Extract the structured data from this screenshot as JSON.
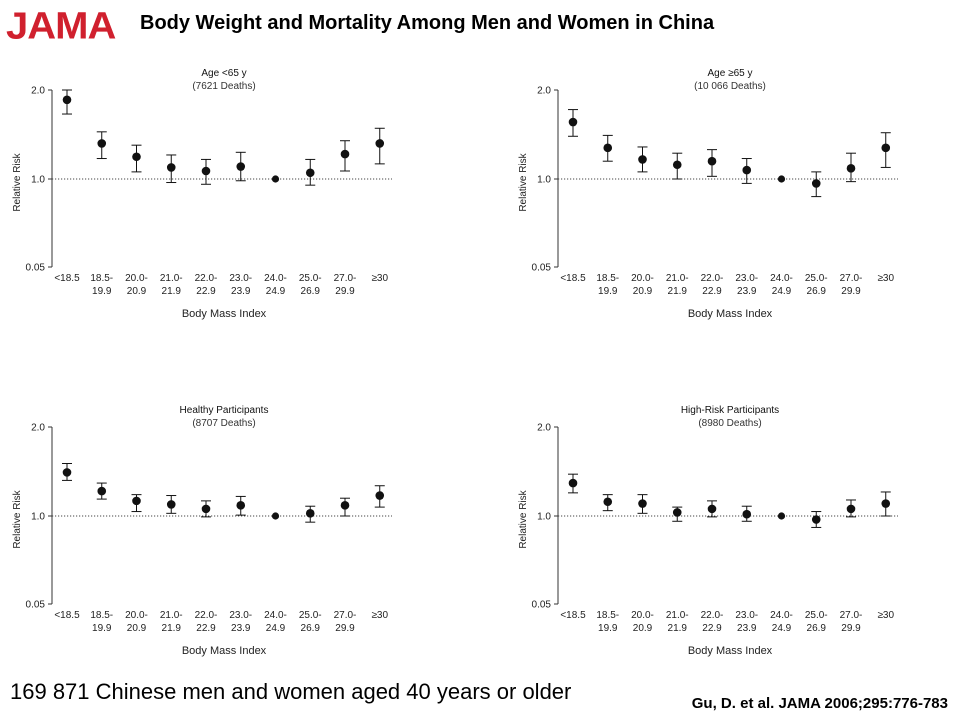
{
  "header": {
    "logo_text": "JAMA",
    "logo_color": "#d0202e",
    "title": "Body Weight and Mortality Among Men and Women in China"
  },
  "footer": {
    "note": "169 871 Chinese men and women aged 40 years or older",
    "citation": "Gu, D. et al. JAMA 2006;295:776-783"
  },
  "chart_data": [
    {
      "type": "scatter",
      "title": "Age <65 y",
      "subtitle": "(7621 Deaths)",
      "xlabel": "Body Mass Index",
      "ylabel": "Relative Risk",
      "categories": [
        [
          "<18.5"
        ],
        [
          "18.5-",
          "19.9"
        ],
        [
          "20.0-",
          "20.9"
        ],
        [
          "21.0-",
          "21.9"
        ],
        [
          "22.0-",
          "22.9"
        ],
        [
          "23.0-",
          "23.9"
        ],
        [
          "24.0-",
          "24.9"
        ],
        [
          "25.0-",
          "26.9"
        ],
        [
          "27.0-",
          "29.9"
        ],
        [
          "≥30"
        ]
      ],
      "yticks": [
        "2.0",
        "1.0",
        "0.05"
      ],
      "y_tick_values": [
        2.0,
        1.0,
        0.05
      ],
      "reference_line": 1.0,
      "values": [
        1.89,
        1.4,
        1.25,
        1.13,
        1.09,
        1.14,
        1.0,
        1.07,
        1.28,
        1.4
      ],
      "ci_low": [
        1.73,
        1.23,
        1.08,
        0.96,
        0.94,
        0.98,
        1.0,
        0.93,
        1.09,
        1.17
      ],
      "ci_high": [
        2.0,
        1.53,
        1.38,
        1.27,
        1.22,
        1.3,
        1.0,
        1.22,
        1.43,
        1.57
      ]
    },
    {
      "type": "scatter",
      "title": "Age ≥65 y",
      "subtitle": "(10 066 Deaths)",
      "xlabel": "Body Mass Index",
      "ylabel": "Relative Risk",
      "categories": [
        [
          "<18.5"
        ],
        [
          "18.5-",
          "19.9"
        ],
        [
          "20.0-",
          "20.9"
        ],
        [
          "21.0-",
          "21.9"
        ],
        [
          "22.0-",
          "22.9"
        ],
        [
          "23.0-",
          "23.9"
        ],
        [
          "24.0-",
          "24.9"
        ],
        [
          "25.0-",
          "26.9"
        ],
        [
          "27.0-",
          "29.9"
        ],
        [
          "≥30"
        ]
      ],
      "yticks": [
        "2.0",
        "1.0",
        "0.05"
      ],
      "y_tick_values": [
        2.0,
        1.0,
        0.05
      ],
      "reference_line": 1.0,
      "values": [
        1.64,
        1.35,
        1.22,
        1.16,
        1.2,
        1.1,
        1.0,
        0.95,
        1.12,
        1.35
      ],
      "ci_low": [
        1.48,
        1.2,
        1.08,
        1.0,
        1.03,
        0.95,
        1.0,
        0.8,
        0.97,
        1.13
      ],
      "ci_high": [
        1.78,
        1.49,
        1.36,
        1.29,
        1.33,
        1.23,
        1.0,
        1.08,
        1.29,
        1.52
      ]
    },
    {
      "type": "scatter",
      "title": "Healthy Participants",
      "subtitle": "(8707 Deaths)",
      "xlabel": "Body Mass Index",
      "ylabel": "Relative Risk",
      "categories": [
        [
          "<18.5"
        ],
        [
          "18.5-",
          "19.9"
        ],
        [
          "20.0-",
          "20.9"
        ],
        [
          "21.0-",
          "21.9"
        ],
        [
          "22.0-",
          "22.9"
        ],
        [
          "23.0-",
          "23.9"
        ],
        [
          "24.0-",
          "24.9"
        ],
        [
          "25.0-",
          "26.9"
        ],
        [
          "27.0-",
          "29.9"
        ],
        [
          "≥30"
        ]
      ],
      "yticks": [
        "2.0",
        "1.0",
        "0.05"
      ],
      "y_tick_values": [
        2.0,
        1.0,
        0.05
      ],
      "reference_line": 1.0,
      "values": [
        1.49,
        1.28,
        1.17,
        1.13,
        1.08,
        1.12,
        1.0,
        1.03,
        1.12,
        1.23
      ],
      "ci_low": [
        1.4,
        1.19,
        1.05,
        1.03,
        0.99,
        1.01,
        1.0,
        0.93,
        1.0,
        1.1
      ],
      "ci_high": [
        1.59,
        1.37,
        1.24,
        1.23,
        1.17,
        1.22,
        1.0,
        1.11,
        1.2,
        1.34
      ]
    },
    {
      "type": "scatter",
      "title": "High-Risk Participants",
      "subtitle": "(8980 Deaths)",
      "xlabel": "Body Mass Index",
      "ylabel": "Relative Risk",
      "categories": [
        [
          "<18.5"
        ],
        [
          "18.5-",
          "19.9"
        ],
        [
          "20.0-",
          "20.9"
        ],
        [
          "21.0-",
          "21.9"
        ],
        [
          "22.0-",
          "22.9"
        ],
        [
          "23.0-",
          "23.9"
        ],
        [
          "24.0-",
          "24.9"
        ],
        [
          "25.0-",
          "26.9"
        ],
        [
          "27.0-",
          "29.9"
        ],
        [
          "≥30"
        ]
      ],
      "yticks": [
        "2.0",
        "1.0",
        "0.05"
      ],
      "y_tick_values": [
        2.0,
        1.0,
        0.05
      ],
      "reference_line": 1.0,
      "values": [
        1.37,
        1.16,
        1.14,
        1.04,
        1.08,
        1.02,
        1.0,
        0.96,
        1.08,
        1.14
      ],
      "ci_low": [
        1.26,
        1.06,
        1.03,
        0.94,
        0.99,
        0.94,
        1.0,
        0.87,
        0.99,
        1.0
      ],
      "ci_high": [
        1.47,
        1.24,
        1.24,
        1.1,
        1.17,
        1.11,
        1.0,
        1.05,
        1.18,
        1.27
      ]
    }
  ]
}
